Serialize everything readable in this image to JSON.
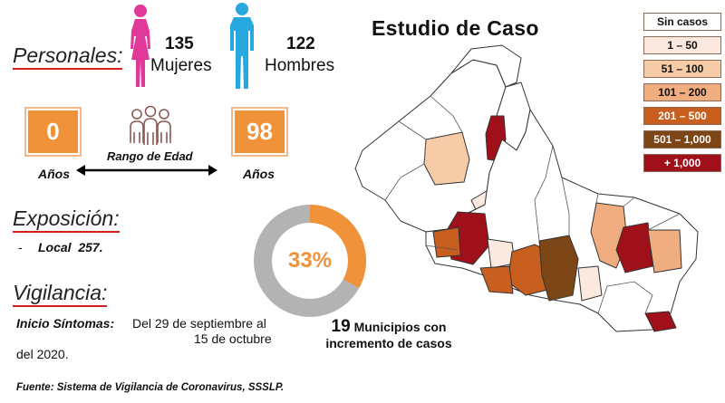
{
  "title": "Estudio de Caso",
  "personales": {
    "label": "Personales:",
    "women_count": "135",
    "women_label": "Mujeres",
    "men_count": "122",
    "men_label": "Hombres"
  },
  "age_range": {
    "min": "0",
    "max": "98",
    "unit_label": "Años",
    "label": "Rango de Edad"
  },
  "exposicion": {
    "label": "Exposición:",
    "bullet": "-",
    "item": "Local  257."
  },
  "vigilancia": {
    "label": "Vigilancia:",
    "onset_label": "Inicio Síntomas:",
    "onset_line1": "Del 29 de septiembre al",
    "onset_line2": "15 de octubre",
    "onset_line3": "del 2020."
  },
  "donut": {
    "value_text": "33%",
    "fraction": 0.33,
    "fill_color": "#f0923a",
    "track_color": "#b3b3b3",
    "caption_number": "19",
    "caption_line1": "Municipios con",
    "caption_line2": "incremento de casos"
  },
  "legend": [
    {
      "label": "Sin casos",
      "color": "#ffffff",
      "text_color": "#111111"
    },
    {
      "label": "1 – 50",
      "color": "#fbe9df",
      "text_color": "#111111"
    },
    {
      "label": "51 – 100",
      "color": "#f6cba8",
      "text_color": "#111111"
    },
    {
      "label": "101 – 200",
      "color": "#efad80",
      "text_color": "#111111"
    },
    {
      "label": "201 – 500",
      "color": "#c85f1e",
      "text_color": "#ffffff"
    },
    {
      "label": "501 – 1,000",
      "color": "#7c4617",
      "text_color": "#ffffff"
    },
    {
      "label": "+ 1,000",
      "color": "#a0101a",
      "text_color": "#ffffff"
    }
  ],
  "source": "Fuente: Sistema de Vigilancia de Coronavirus, SSSLP."
}
